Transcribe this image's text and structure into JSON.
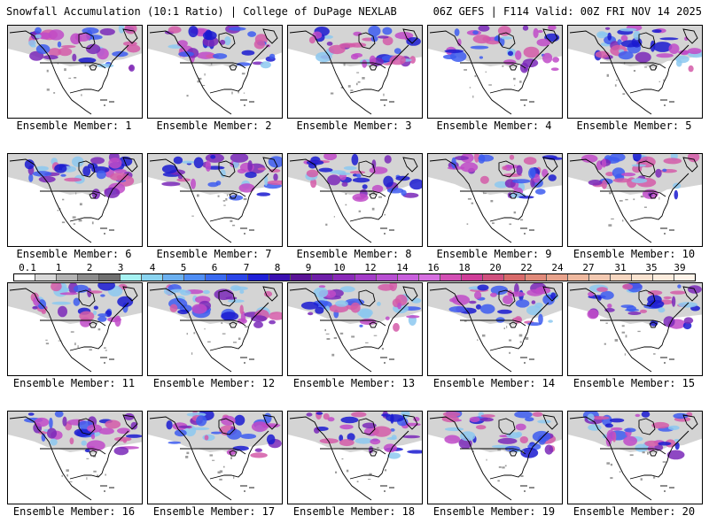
{
  "header": {
    "left": "Snowfall Accumulation (10:1 Ratio) | College of DuPage NEXLAB",
    "right": "06Z GEFS | F114 Valid: 00Z FRI NOV 14 2025"
  },
  "members": [
    {
      "label": "Ensemble Member: 1"
    },
    {
      "label": "Ensemble Member: 2"
    },
    {
      "label": "Ensemble Member: 3"
    },
    {
      "label": "Ensemble Member: 4"
    },
    {
      "label": "Ensemble Member: 5"
    },
    {
      "label": "Ensemble Member: 6"
    },
    {
      "label": "Ensemble Member: 7"
    },
    {
      "label": "Ensemble Member: 8"
    },
    {
      "label": "Ensemble Member: 9"
    },
    {
      "label": "Ensemble Member: 10"
    },
    {
      "label": "Ensemble Member: 11"
    },
    {
      "label": "Ensemble Member: 12"
    },
    {
      "label": "Ensemble Member: 13"
    },
    {
      "label": "Ensemble Member: 14"
    },
    {
      "label": "Ensemble Member: 15"
    },
    {
      "label": "Ensemble Member: 16"
    },
    {
      "label": "Ensemble Member: 17"
    },
    {
      "label": "Ensemble Member: 18"
    },
    {
      "label": "Ensemble Member: 19"
    },
    {
      "label": "Ensemble Member: 20"
    }
  ],
  "colorbar": {
    "ticks": [
      "0.1",
      "1",
      "2",
      "3",
      "4",
      "5",
      "6",
      "7",
      "8",
      "9",
      "10",
      "12",
      "14",
      "16",
      "18",
      "20",
      "22",
      "24",
      "27",
      "31",
      "35",
      "39"
    ],
    "colors": [
      "#ffffff",
      "#d9d9d9",
      "#b3b3b3",
      "#8c8c8c",
      "#707070",
      "#a6f2f2",
      "#8ad4f0",
      "#6bb0f0",
      "#4f8ef5",
      "#3a6af0",
      "#2a45e8",
      "#1f20d8",
      "#3a10b0",
      "#5a1496",
      "#6e1fa8",
      "#8a2ab8",
      "#a33cc8",
      "#b84fd2",
      "#c85fdc",
      "#d66fe0",
      "#d24fb4",
      "#cf3d98",
      "#d0507e",
      "#d86a6a",
      "#e08a7a",
      "#e8a38c",
      "#efb99f",
      "#f3c9b1",
      "#f7d7c1",
      "#fae3d0",
      "#fcecdd",
      "#fff4ea"
    ]
  },
  "map_colors": {
    "light_gray": "#d4d4d4",
    "dark_gray": "#9c9c9c",
    "light_blue": "#8cc8f0",
    "blue": "#3d5cf0",
    "navy": "#1a1ad0",
    "purple": "#7a28b8",
    "magenta": "#c04ac8",
    "pink": "#d35aa8"
  }
}
